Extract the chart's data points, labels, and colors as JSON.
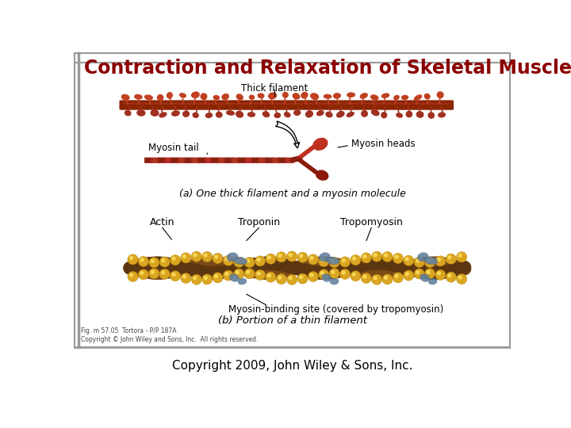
{
  "title": "Contraction and Relaxation of Skeletal Muscle",
  "title_color": "#8B0000",
  "title_fontsize": 17,
  "copyright": "Copyright 2009, John Wiley & Sons, Inc.",
  "copyright_fontsize": 11,
  "background_color": "#ffffff",
  "slide_border_color": "#999999",
  "thick_filament_color": "#8B2500",
  "myosin_head_color": "#C04020",
  "actin_color": "#DAA520",
  "troponin_color": "#6080A0",
  "backbone_color": "#7B4A18",
  "label_a": "(a) One thick filament and a myosin molecule",
  "label_b": "(b) Portion of a thin filament",
  "label_thick": "Thick filament",
  "label_myosin_tail": "Myosin tail",
  "label_myosin_heads": "Myosin heads",
  "label_actin": "Actin",
  "label_troponin": "Troponin",
  "label_tropomyosin": "Tropomyosin",
  "label_binding": "Myosin-binding site (covered by tropomyosin)",
  "small_text": "Fig. m 57.05  Tortora - P/P 187A\nCopyright © John Wiley and Sons, Inc.  All rights reserved."
}
